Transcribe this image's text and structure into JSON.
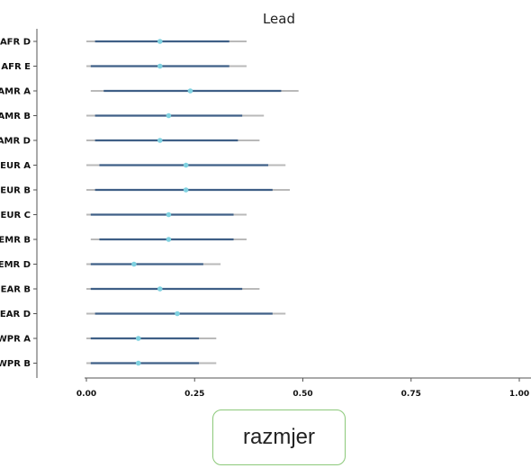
{
  "chart_data": {
    "type": "interval",
    "title": "Lead",
    "categories": [
      "AFR D",
      "AFR E",
      "AMR A",
      "AMR B",
      "AMR D",
      "EUR A",
      "EUR B",
      "EUR C",
      "EMR B",
      "EMR D",
      "SEAR B",
      "SEAR D",
      "WPR A",
      "WPR B"
    ],
    "point": [
      0.17,
      0.17,
      0.24,
      0.19,
      0.17,
      0.23,
      0.23,
      0.19,
      0.19,
      0.11,
      0.17,
      0.21,
      0.12,
      0.12
    ],
    "inner_low": [
      0.02,
      0.01,
      0.04,
      0.02,
      0.02,
      0.03,
      0.02,
      0.01,
      0.03,
      0.01,
      0.01,
      0.02,
      0.01,
      0.01
    ],
    "inner_high": [
      0.33,
      0.33,
      0.45,
      0.36,
      0.35,
      0.42,
      0.43,
      0.34,
      0.34,
      0.27,
      0.36,
      0.43,
      0.26,
      0.26
    ],
    "outer_low": [
      0.0,
      0.0,
      0.01,
      0.0,
      0.0,
      0.0,
      0.0,
      0.0,
      0.01,
      0.0,
      0.0,
      0.0,
      0.0,
      0.0
    ],
    "outer_high": [
      0.37,
      0.37,
      0.49,
      0.41,
      0.4,
      0.46,
      0.47,
      0.37,
      0.37,
      0.31,
      0.4,
      0.46,
      0.3,
      0.3
    ],
    "xlim": [
      0,
      1.0
    ],
    "xticks": [
      "0.00",
      "0.25",
      "0.50",
      "0.75",
      "1.00"
    ],
    "colors": {
      "inner": "#3f5f86",
      "outer": "#b9b9b9",
      "point": "#7fd1e0",
      "axis": "#555555"
    }
  },
  "footer": {
    "button_label": "razmjer"
  }
}
